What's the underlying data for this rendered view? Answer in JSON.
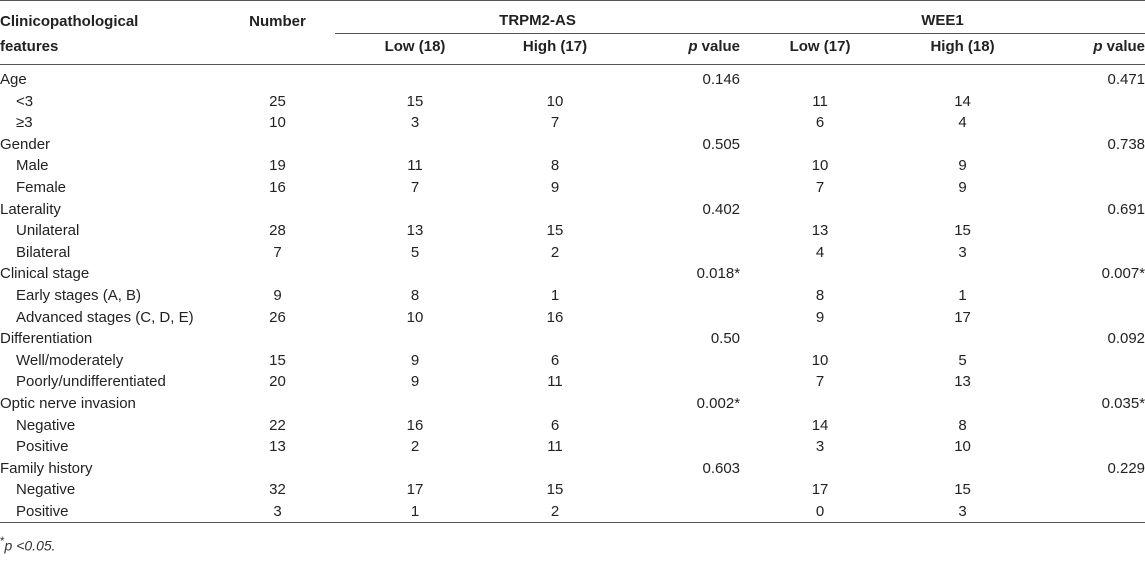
{
  "header": {
    "col_feature_line1": "Clinicopathological",
    "col_feature_line2": "features",
    "col_number": "Number",
    "group_trpm2": "TRPM2-AS",
    "group_wee1": "WEE1",
    "trpm2_low": "Low (18)",
    "trpm2_high": "High (17)",
    "wee1_low": "Low (17)",
    "wee1_high": "High (18)",
    "p_italic": "p",
    "p_value_word": " value"
  },
  "rows": [
    {
      "label": "Age",
      "indent": false,
      "number": "",
      "t_low": "",
      "t_high": "",
      "t_p": "0.146",
      "w_low": "",
      "w_high": "",
      "w_p": "0.471"
    },
    {
      "label": "<3",
      "indent": true,
      "number": "25",
      "t_low": "15",
      "t_high": "10",
      "t_p": "",
      "w_low": "11",
      "w_high": "14",
      "w_p": ""
    },
    {
      "label": "≥3",
      "indent": true,
      "number": "10",
      "t_low": "3",
      "t_high": "7",
      "t_p": "",
      "w_low": "6",
      "w_high": "4",
      "w_p": ""
    },
    {
      "label": "Gender",
      "indent": false,
      "number": "",
      "t_low": "",
      "t_high": "",
      "t_p": "0.505",
      "w_low": "",
      "w_high": "",
      "w_p": "0.738"
    },
    {
      "label": "Male",
      "indent": true,
      "number": "19",
      "t_low": "11",
      "t_high": "8",
      "t_p": "",
      "w_low": "10",
      "w_high": "9",
      "w_p": ""
    },
    {
      "label": "Female",
      "indent": true,
      "number": "16",
      "t_low": "7",
      "t_high": "9",
      "t_p": "",
      "w_low": "7",
      "w_high": "9",
      "w_p": ""
    },
    {
      "label": "Laterality",
      "indent": false,
      "number": "",
      "t_low": "",
      "t_high": "",
      "t_p": "0.402",
      "w_low": "",
      "w_high": "",
      "w_p": "0.691"
    },
    {
      "label": "Unilateral",
      "indent": true,
      "number": "28",
      "t_low": "13",
      "t_high": "15",
      "t_p": "",
      "w_low": "13",
      "w_high": "15",
      "w_p": ""
    },
    {
      "label": "Bilateral",
      "indent": true,
      "number": "7",
      "t_low": "5",
      "t_high": "2",
      "t_p": "",
      "w_low": "4",
      "w_high": "3",
      "w_p": ""
    },
    {
      "label": "Clinical stage",
      "indent": false,
      "number": "",
      "t_low": "",
      "t_high": "",
      "t_p": "0.018*",
      "w_low": "",
      "w_high": "",
      "w_p": "0.007*"
    },
    {
      "label": "Early stages (A, B)",
      "indent": true,
      "number": "9",
      "t_low": "8",
      "t_high": "1",
      "t_p": "",
      "w_low": "8",
      "w_high": "1",
      "w_p": ""
    },
    {
      "label": "Advanced stages (C, D, E)",
      "indent": true,
      "number": "26",
      "t_low": "10",
      "t_high": "16",
      "t_p": "",
      "w_low": "9",
      "w_high": "17",
      "w_p": ""
    },
    {
      "label": "Differentiation",
      "indent": false,
      "number": "",
      "t_low": "",
      "t_high": "",
      "t_p": "0.50",
      "w_low": "",
      "w_high": "",
      "w_p": "0.092"
    },
    {
      "label": "Well/moderately",
      "indent": true,
      "number": "15",
      "t_low": "9",
      "t_high": "6",
      "t_p": "",
      "w_low": "10",
      "w_high": "5",
      "w_p": ""
    },
    {
      "label": "Poorly/undifferentiated",
      "indent": true,
      "number": "20",
      "t_low": "9",
      "t_high": "11",
      "t_p": "",
      "w_low": "7",
      "w_high": "13",
      "w_p": ""
    },
    {
      "label": "Optic nerve invasion",
      "indent": false,
      "number": "",
      "t_low": "",
      "t_high": "",
      "t_p": "0.002*",
      "w_low": "",
      "w_high": "",
      "w_p": "0.035*"
    },
    {
      "label": "Negative",
      "indent": true,
      "number": "22",
      "t_low": "16",
      "t_high": "6",
      "t_p": "",
      "w_low": "14",
      "w_high": "8",
      "w_p": ""
    },
    {
      "label": "Positive",
      "indent": true,
      "number": "13",
      "t_low": "2",
      "t_high": "11",
      "t_p": "",
      "w_low": "3",
      "w_high": "10",
      "w_p": ""
    },
    {
      "label": "Family history",
      "indent": false,
      "number": "",
      "t_low": "",
      "t_high": "",
      "t_p": "0.603",
      "w_low": "",
      "w_high": "",
      "w_p": "0.229"
    },
    {
      "label": "Negative",
      "indent": true,
      "number": "32",
      "t_low": "17",
      "t_high": "15",
      "t_p": "",
      "w_low": "17",
      "w_high": "15",
      "w_p": ""
    },
    {
      "label": "Positive",
      "indent": true,
      "number": "3",
      "t_low": "1",
      "t_high": "2",
      "t_p": "",
      "w_low": "0",
      "w_high": "3",
      "w_p": ""
    }
  ],
  "footnote": {
    "marker": "*",
    "text": "p <0.05."
  }
}
